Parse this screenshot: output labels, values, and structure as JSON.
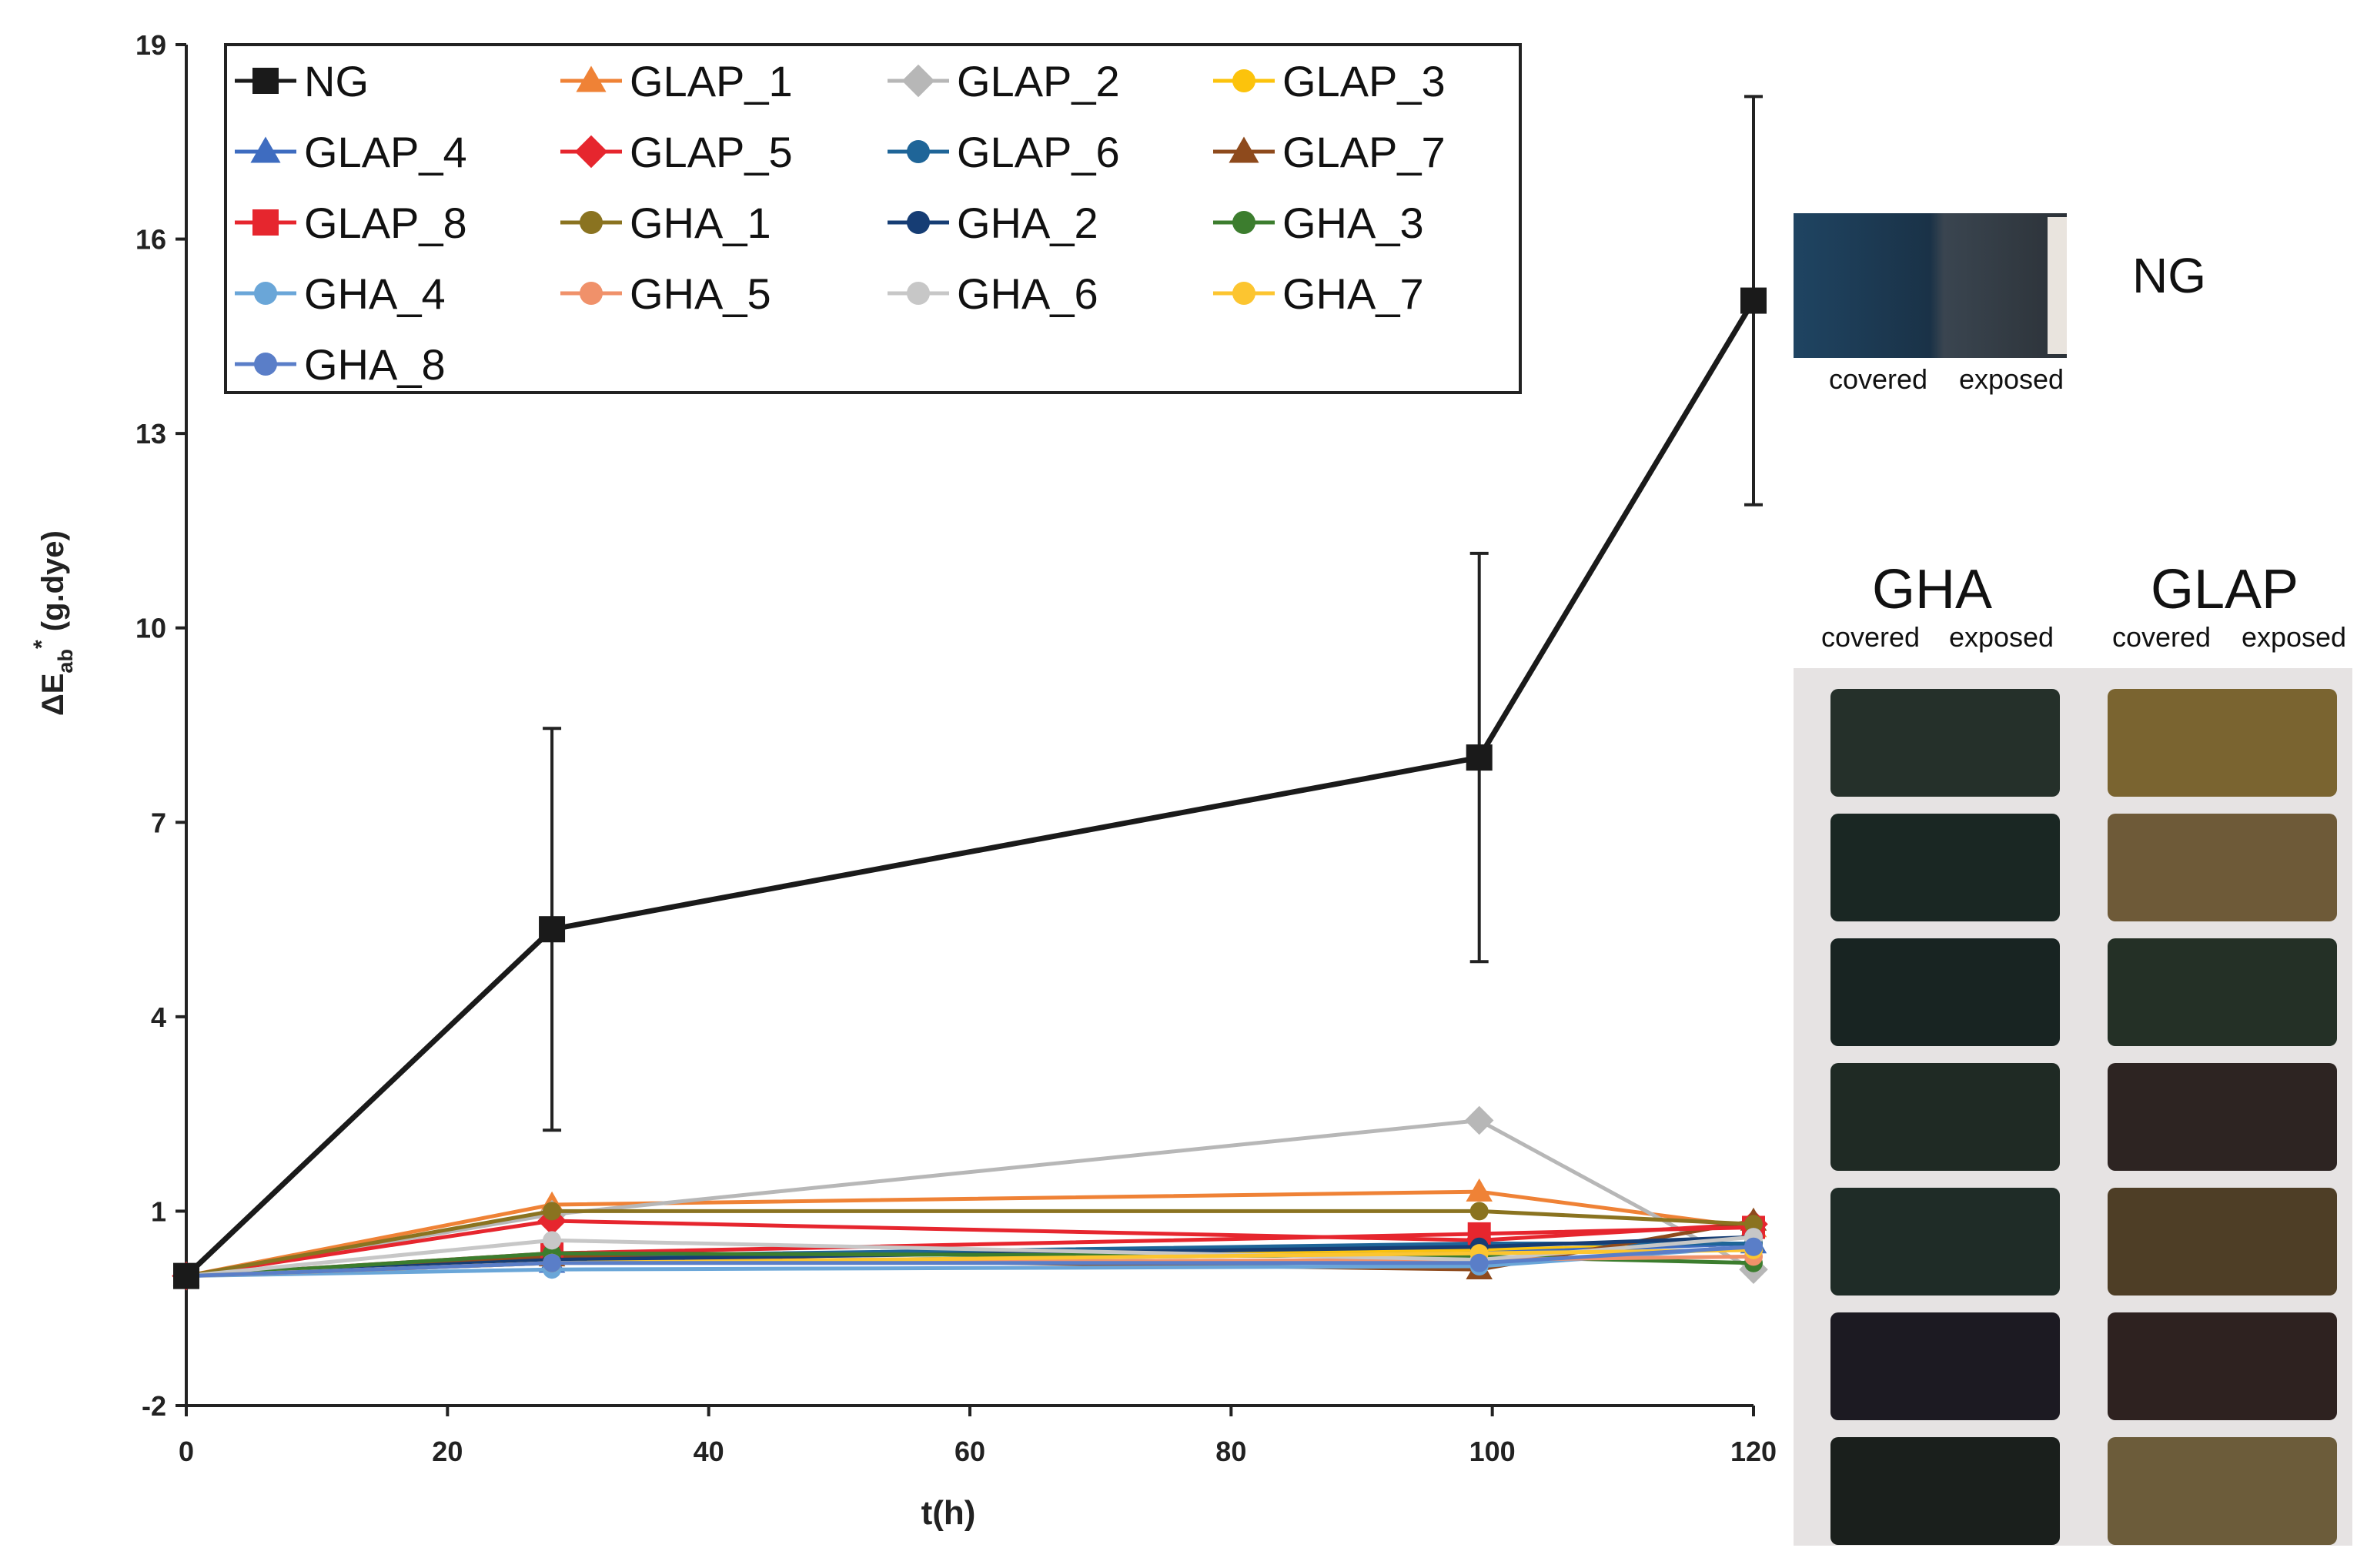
{
  "chart_data": {
    "type": "line",
    "title": "",
    "xlabel": "t(h)",
    "ylabel_main": "ΔE",
    "ylabel_sub": "ab",
    "ylabel_sup": "*",
    "ylabel_rest": " (g.dye)",
    "xlim": [
      0,
      120
    ],
    "ylim": [
      -2,
      19
    ],
    "xticks": [
      0,
      20,
      40,
      60,
      80,
      100,
      120
    ],
    "yticks": [
      -2,
      1,
      4,
      7,
      10,
      13,
      16,
      19
    ],
    "x": [
      0,
      28,
      99,
      120
    ],
    "legend_position": "top-left",
    "series": [
      {
        "name": "NG",
        "color": "#1a1a1a",
        "marker": "square",
        "values": [
          0,
          5.35,
          8.0,
          15.05
        ],
        "errors": [
          0,
          3.1,
          3.15,
          3.15
        ]
      },
      {
        "name": "GLAP_1",
        "color": "#ef8236",
        "marker": "triangle",
        "values": [
          0,
          1.1,
          1.3,
          0.75
        ]
      },
      {
        "name": "GLAP_2",
        "color": "#b7b7b7",
        "marker": "diamond",
        "values": [
          0,
          0.95,
          2.4,
          0.1
        ]
      },
      {
        "name": "GLAP_3",
        "color": "#fcc30c",
        "marker": "circle",
        "values": [
          0,
          0.3,
          0.4,
          0.5
        ]
      },
      {
        "name": "GLAP_4",
        "color": "#3e6cc0",
        "marker": "triangle",
        "values": [
          0,
          0.2,
          0.35,
          0.5
        ]
      },
      {
        "name": "GLAP_5",
        "color": "#e6262e",
        "marker": "diamond",
        "values": [
          0,
          0.85,
          0.55,
          0.8
        ]
      },
      {
        "name": "GLAP_6",
        "color": "#1f6598",
        "marker": "circle",
        "values": [
          0,
          0.3,
          0.5,
          0.5
        ]
      },
      {
        "name": "GLAP_7",
        "color": "#8e4a1c",
        "marker": "triangle",
        "values": [
          0,
          0.3,
          0.1,
          0.85
        ]
      },
      {
        "name": "GLAP_8",
        "color": "#e6262e",
        "marker": "square",
        "values": [
          0,
          0.35,
          0.65,
          0.75
        ]
      },
      {
        "name": "GHA_1",
        "color": "#8a7320",
        "marker": "circle",
        "values": [
          0,
          1.0,
          1.0,
          0.8
        ]
      },
      {
        "name": "GHA_2",
        "color": "#163d74",
        "marker": "circle",
        "values": [
          0,
          0.25,
          0.45,
          0.6
        ]
      },
      {
        "name": "GHA_3",
        "color": "#3c7d2e",
        "marker": "circle",
        "values": [
          0,
          0.35,
          0.3,
          0.2
        ]
      },
      {
        "name": "GHA_4",
        "color": "#6aa6d8",
        "marker": "circle",
        "values": [
          0,
          0.1,
          0.15,
          0.45
        ]
      },
      {
        "name": "GHA_5",
        "color": "#f0916a",
        "marker": "circle",
        "values": [
          0,
          0.2,
          0.25,
          0.3
        ]
      },
      {
        "name": "GHA_6",
        "color": "#c7c7c7",
        "marker": "circle",
        "values": [
          0,
          0.55,
          0.25,
          0.6
        ]
      },
      {
        "name": "GHA_7",
        "color": "#fcc530",
        "marker": "circle",
        "values": [
          0,
          0.2,
          0.35,
          0.4
        ]
      },
      {
        "name": "GHA_8",
        "color": "#5a7ec8",
        "marker": "circle",
        "values": [
          0,
          0.2,
          0.2,
          0.45
        ]
      }
    ]
  },
  "photos": {
    "ng_label": "NG",
    "ng_covered": "covered",
    "ng_exposed": "exposed",
    "gha_title": "GHA",
    "glap_title": "GLAP",
    "gha_covered": "covered",
    "gha_exposed": "exposed",
    "glap_covered": "covered",
    "glap_exposed": "exposed",
    "ng_colors": [
      "#1c3a55",
      "#2c3a44"
    ],
    "gha_tiles": [
      "#25302a",
      "#1a2723",
      "#182422",
      "#1f2a24",
      "#1f2c27",
      "#1c1a22",
      "#1a1f1c"
    ],
    "glap_tiles": [
      "#7a6430",
      "#6e5a38",
      "#243026",
      "#2d2422",
      "#4e3e26",
      "#2e2220",
      "#6c5c3a"
    ]
  }
}
